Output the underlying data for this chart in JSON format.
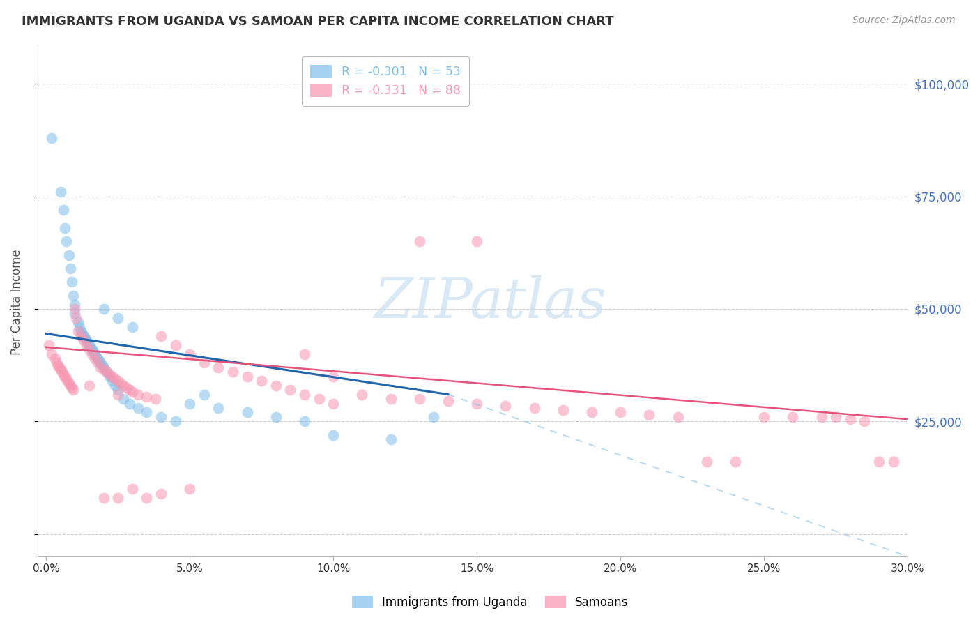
{
  "title": "IMMIGRANTS FROM UGANDA VS SAMOAN PER CAPITA INCOME CORRELATION CHART",
  "source": "Source: ZipAtlas.com",
  "ylabel": "Per Capita Income",
  "xlabel_ticks": [
    "0.0%",
    "5.0%",
    "10.0%",
    "15.0%",
    "20.0%",
    "25.0%",
    "30.0%"
  ],
  "xlabel_vals": [
    0.0,
    5.0,
    10.0,
    15.0,
    20.0,
    25.0,
    30.0
  ],
  "ylabel_ticks": [
    0,
    25000,
    50000,
    75000,
    100000
  ],
  "ylabel_labels": [
    "$0",
    "$25,000",
    "$50,000",
    "$75,000",
    "$100,000"
  ],
  "ylim": [
    -5000,
    108000
  ],
  "xlim": [
    -0.3,
    30
  ],
  "legend_entries": [
    {
      "label": "R = -0.301   N = 53",
      "color": "#7fbfea"
    },
    {
      "label": "R = -0.331   N = 88",
      "color": "#f895b0"
    }
  ],
  "series1_label": "Immigrants from Uganda",
  "series2_label": "Samoans",
  "series1_color": "#7fbfea",
  "series2_color": "#f895b0",
  "trend1_color": "#2166ac",
  "trend2_color": "#e8517a",
  "trend1_x0": 0,
  "trend1_x1": 14,
  "trend1_y0": 44500,
  "trend1_y1": 31000,
  "trend2_x0": 0,
  "trend2_x1": 30,
  "trend2_y0": 41500,
  "trend2_y1": 25500,
  "dash_x0": 14,
  "dash_x1": 30,
  "dash_y0": 31000,
  "dash_y1": -5000,
  "watermark_text": "ZIPatlas",
  "background_color": "#ffffff",
  "grid_color": "#c8c8d0",
  "title_color": "#333333",
  "axis_label_color": "#555555",
  "right_tick_color": "#4472c4",
  "source_color": "#999999",
  "s1_x": [
    0.18,
    0.5,
    0.6,
    0.65,
    0.7,
    0.8,
    0.85,
    0.9,
    0.95,
    1.0,
    1.0,
    1.1,
    1.15,
    1.2,
    1.25,
    1.3,
    1.35,
    1.4,
    1.45,
    1.5,
    1.55,
    1.6,
    1.65,
    1.7,
    1.75,
    1.8,
    1.85,
    1.9,
    1.95,
    2.0,
    2.1,
    2.2,
    2.3,
    2.4,
    2.5,
    2.7,
    2.9,
    3.2,
    3.5,
    4.0,
    4.5,
    5.0,
    6.0,
    7.0,
    8.0,
    9.0,
    10.0,
    12.0,
    13.5,
    2.0,
    2.5,
    3.0,
    5.5
  ],
  "s1_y": [
    88000,
    76000,
    72000,
    68000,
    65000,
    62000,
    59000,
    56000,
    53000,
    51000,
    49000,
    47000,
    46000,
    45000,
    44500,
    44000,
    43500,
    43000,
    42500,
    42000,
    41500,
    41000,
    40500,
    40000,
    39500,
    39000,
    38500,
    38000,
    37500,
    37000,
    36000,
    35000,
    34000,
    33000,
    32000,
    30000,
    29000,
    28000,
    27000,
    26000,
    25000,
    29000,
    28000,
    27000,
    26000,
    25000,
    22000,
    21000,
    26000,
    50000,
    48000,
    46000,
    31000
  ],
  "s2_x": [
    0.1,
    0.2,
    0.3,
    0.35,
    0.4,
    0.45,
    0.5,
    0.55,
    0.6,
    0.65,
    0.7,
    0.75,
    0.8,
    0.85,
    0.9,
    0.95,
    1.0,
    1.05,
    1.1,
    1.2,
    1.3,
    1.4,
    1.5,
    1.6,
    1.7,
    1.8,
    1.9,
    2.0,
    2.1,
    2.2,
    2.3,
    2.4,
    2.5,
    2.6,
    2.7,
    2.8,
    2.9,
    3.0,
    3.2,
    3.5,
    3.8,
    4.0,
    4.5,
    5.0,
    5.5,
    6.0,
    6.5,
    7.0,
    7.5,
    8.0,
    8.5,
    9.0,
    9.5,
    10.0,
    11.0,
    12.0,
    13.0,
    14.0,
    15.0,
    16.0,
    17.0,
    18.0,
    19.0,
    20.0,
    21.0,
    22.0,
    23.0,
    24.0,
    25.0,
    26.0,
    27.0,
    27.5,
    28.0,
    28.5,
    29.0,
    29.5,
    1.5,
    2.5,
    3.0,
    4.0,
    9.0,
    10.0,
    13.0,
    15.0,
    2.0,
    2.5,
    3.5,
    5.0
  ],
  "s2_y": [
    42000,
    40000,
    39000,
    38000,
    37500,
    37000,
    36500,
    36000,
    35500,
    35000,
    34500,
    34000,
    33500,
    33000,
    32500,
    32000,
    50000,
    48000,
    45000,
    44000,
    43000,
    42000,
    41000,
    40000,
    39000,
    38000,
    37000,
    36500,
    36000,
    35500,
    35000,
    34500,
    34000,
    33500,
    33000,
    32500,
    32000,
    31500,
    31000,
    30500,
    30000,
    44000,
    42000,
    40000,
    38000,
    37000,
    36000,
    35000,
    34000,
    33000,
    32000,
    31000,
    30000,
    29000,
    31000,
    30000,
    30000,
    29500,
    29000,
    28500,
    28000,
    27500,
    27000,
    27000,
    26500,
    26000,
    16000,
    16000,
    26000,
    26000,
    26000,
    26000,
    25500,
    25000,
    16000,
    16000,
    33000,
    31000,
    10000,
    9000,
    40000,
    35000,
    65000,
    65000,
    8000,
    8000,
    8000,
    10000
  ]
}
